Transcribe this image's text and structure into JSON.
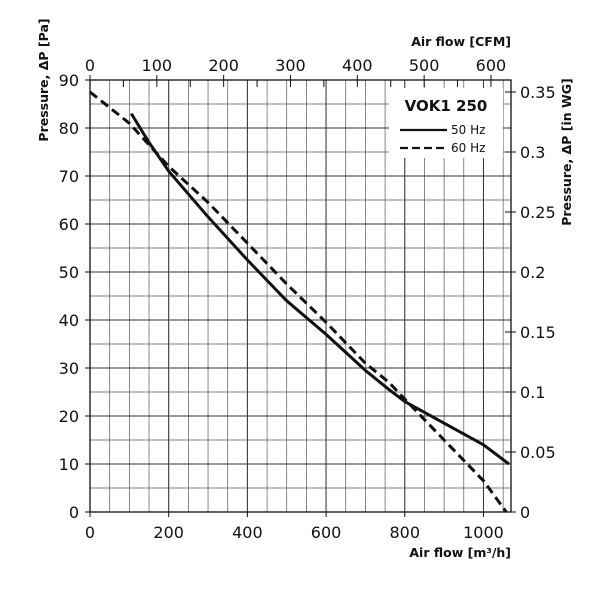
{
  "chart_data": {
    "type": "line",
    "title": "VOK1 250",
    "x_bottom": {
      "label": "Air flow [m³/h]",
      "range": [
        0,
        1070
      ],
      "ticks": [
        0,
        200,
        400,
        600,
        800,
        1000
      ],
      "tick_labels": [
        "0",
        "200",
        "400",
        "600",
        "800",
        "1000"
      ]
    },
    "x_top": {
      "label": "Air flow [CFM]",
      "range": [
        0,
        630
      ],
      "ticks": [
        0,
        100,
        200,
        300,
        400,
        500,
        600
      ],
      "tick_labels": [
        "0",
        "100",
        "200",
        "300",
        "400",
        "500",
        "600"
      ]
    },
    "y_left": {
      "label": "Pressure, ΔP [Pa]",
      "range": [
        0,
        90
      ],
      "ticks": [
        0,
        10,
        20,
        30,
        40,
        50,
        60,
        70,
        80,
        90
      ],
      "tick_labels": [
        "0",
        "10",
        "20",
        "30",
        "40",
        "50",
        "60",
        "70",
        "80",
        "90"
      ]
    },
    "y_right": {
      "label": "Pressure, ΔP [in WG]",
      "range": [
        0,
        0.36
      ],
      "ticks": [
        0,
        0.05,
        0.1,
        0.15,
        0.2,
        0.25,
        0.3,
        0.35
      ],
      "tick_labels": [
        "0",
        "0.05",
        "0.1",
        "0.15",
        "0.2",
        "0.25",
        "0.3",
        "0.35"
      ]
    },
    "grid": true,
    "legend_position": "top-right",
    "series": [
      {
        "name": "50 Hz",
        "style": "solid",
        "color": "#111111",
        "x": [
          105,
          150,
          200,
          300,
          400,
          500,
          600,
          700,
          760,
          800,
          900,
          1000,
          1065
        ],
        "y": [
          83,
          77,
          71,
          61.5,
          52.5,
          44,
          37,
          29.5,
          25.5,
          23,
          18.5,
          14,
          10
        ]
      },
      {
        "name": "60 Hz",
        "style": "dashed",
        "color": "#111111",
        "x": [
          0,
          100,
          200,
          300,
          400,
          500,
          600,
          700,
          760,
          800,
          900,
          1000,
          1058
        ],
        "y": [
          87.5,
          81,
          72,
          64.5,
          56,
          47.5,
          39.5,
          31,
          27,
          23.5,
          15,
          6.5,
          0
        ]
      }
    ]
  }
}
